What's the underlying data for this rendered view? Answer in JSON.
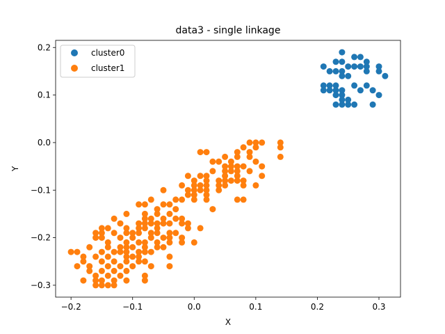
{
  "chart_data": {
    "type": "scatter",
    "title": "data3 - single linkage",
    "xlabel": "X",
    "ylabel": "Y",
    "xlim": [
      -0.225,
      0.335
    ],
    "ylim": [
      -0.325,
      0.215
    ],
    "xticks": [
      -0.2,
      -0.1,
      0.0,
      0.1,
      0.2,
      0.3
    ],
    "yticks": [
      -0.3,
      -0.2,
      -0.1,
      0.0,
      0.1,
      0.2
    ],
    "xtick_labels": [
      "−0.2",
      "−0.1",
      "0.0",
      "0.1",
      "0.2",
      "0.3"
    ],
    "ytick_labels": [
      "−0.3",
      "−0.2",
      "−0.1",
      "0.0",
      "0.1",
      "0.2"
    ],
    "grid": false,
    "legend": "top-left",
    "series": [
      {
        "name": "cluster0",
        "color": "#1f77b4",
        "points": [
          [
            0.24,
            0.19
          ],
          [
            0.26,
            0.18
          ],
          [
            0.27,
            0.18
          ],
          [
            0.28,
            0.17
          ],
          [
            0.21,
            0.16
          ],
          [
            0.23,
            0.17
          ],
          [
            0.24,
            0.17
          ],
          [
            0.25,
            0.16
          ],
          [
            0.26,
            0.16
          ],
          [
            0.27,
            0.16
          ],
          [
            0.28,
            0.16
          ],
          [
            0.3,
            0.16
          ],
          [
            0.22,
            0.15
          ],
          [
            0.23,
            0.15
          ],
          [
            0.24,
            0.15
          ],
          [
            0.28,
            0.15
          ],
          [
            0.3,
            0.15
          ],
          [
            0.24,
            0.14
          ],
          [
            0.25,
            0.14
          ],
          [
            0.31,
            0.14
          ],
          [
            0.21,
            0.12
          ],
          [
            0.22,
            0.12
          ],
          [
            0.23,
            0.12
          ],
          [
            0.26,
            0.12
          ],
          [
            0.28,
            0.12
          ],
          [
            0.21,
            0.11
          ],
          [
            0.22,
            0.11
          ],
          [
            0.23,
            0.11
          ],
          [
            0.24,
            0.11
          ],
          [
            0.27,
            0.11
          ],
          [
            0.29,
            0.11
          ],
          [
            0.23,
            0.1
          ],
          [
            0.24,
            0.1
          ],
          [
            0.3,
            0.1
          ],
          [
            0.24,
            0.09
          ],
          [
            0.25,
            0.09
          ],
          [
            0.23,
            0.08
          ],
          [
            0.24,
            0.08
          ],
          [
            0.25,
            0.08
          ],
          [
            0.26,
            0.08
          ],
          [
            0.29,
            0.08
          ]
        ]
      },
      {
        "name": "cluster1",
        "color": "#ff7f0e",
        "points": [
          [
            0.14,
            0.0
          ],
          [
            0.14,
            -0.01
          ],
          [
            0.14,
            -0.03
          ],
          [
            0.11,
            0.0
          ],
          [
            0.1,
            0.0
          ],
          [
            0.09,
            0.0
          ],
          [
            0.1,
            -0.01
          ],
          [
            0.08,
            -0.01
          ],
          [
            0.09,
            -0.02
          ],
          [
            0.07,
            -0.02
          ],
          [
            0.01,
            -0.02
          ],
          [
            0.02,
            -0.02
          ],
          [
            0.07,
            -0.03
          ],
          [
            0.05,
            -0.03
          ],
          [
            0.09,
            -0.03
          ],
          [
            0.03,
            -0.04
          ],
          [
            0.04,
            -0.04
          ],
          [
            0.06,
            -0.04
          ],
          [
            0.1,
            -0.04
          ],
          [
            0.11,
            -0.05
          ],
          [
            0.05,
            -0.05
          ],
          [
            0.06,
            -0.05
          ],
          [
            0.07,
            -0.05
          ],
          [
            0.08,
            -0.05
          ],
          [
            0.03,
            -0.06
          ],
          [
            0.05,
            -0.06
          ],
          [
            0.06,
            -0.06
          ],
          [
            0.07,
            -0.06
          ],
          [
            0.09,
            -0.06
          ],
          [
            -0.01,
            -0.07
          ],
          [
            0.01,
            -0.07
          ],
          [
            0.02,
            -0.07
          ],
          [
            0.05,
            -0.07
          ],
          [
            0.07,
            -0.07
          ],
          [
            0.11,
            -0.07
          ],
          [
            0.0,
            -0.08
          ],
          [
            0.02,
            -0.08
          ],
          [
            0.04,
            -0.08
          ],
          [
            0.05,
            -0.08
          ],
          [
            0.06,
            -0.08
          ],
          [
            0.07,
            -0.08
          ],
          [
            0.08,
            -0.08
          ],
          [
            -0.02,
            -0.09
          ],
          [
            0.0,
            -0.09
          ],
          [
            0.01,
            -0.09
          ],
          [
            0.02,
            -0.09
          ],
          [
            0.04,
            -0.09
          ],
          [
            0.05,
            -0.09
          ],
          [
            0.08,
            -0.09
          ],
          [
            0.1,
            -0.09
          ],
          [
            -0.01,
            -0.1
          ],
          [
            0.0,
            -0.1
          ],
          [
            0.01,
            -0.1
          ],
          [
            0.02,
            -0.1
          ],
          [
            -0.05,
            -0.1
          ],
          [
            0.04,
            -0.1
          ],
          [
            -0.01,
            -0.11
          ],
          [
            0.0,
            -0.11
          ],
          [
            0.02,
            -0.11
          ],
          [
            -0.02,
            -0.12
          ],
          [
            -0.03,
            -0.12
          ],
          [
            0.0,
            -0.12
          ],
          [
            0.02,
            -0.12
          ],
          [
            0.07,
            -0.12
          ],
          [
            0.08,
            -0.12
          ],
          [
            -0.07,
            -0.12
          ],
          [
            -0.05,
            -0.13
          ],
          [
            -0.04,
            -0.13
          ],
          [
            -0.08,
            -0.13
          ],
          [
            -0.09,
            -0.13
          ],
          [
            -0.06,
            -0.14
          ],
          [
            -0.03,
            -0.14
          ],
          [
            0.03,
            -0.14
          ],
          [
            -0.06,
            -0.15
          ],
          [
            -0.08,
            -0.15
          ],
          [
            -0.11,
            -0.15
          ],
          [
            -0.04,
            -0.15
          ],
          [
            -0.13,
            -0.16
          ],
          [
            -0.08,
            -0.16
          ],
          [
            -0.07,
            -0.16
          ],
          [
            -0.05,
            -0.16
          ],
          [
            -0.03,
            -0.16
          ],
          [
            -0.02,
            -0.16
          ],
          [
            -0.12,
            -0.17
          ],
          [
            -0.09,
            -0.17
          ],
          [
            -0.08,
            -0.17
          ],
          [
            -0.07,
            -0.17
          ],
          [
            -0.06,
            -0.17
          ],
          [
            -0.05,
            -0.17
          ],
          [
            -0.04,
            -0.17
          ],
          [
            -0.02,
            -0.17
          ],
          [
            -0.01,
            -0.17
          ],
          [
            -0.15,
            -0.18
          ],
          [
            -0.14,
            -0.18
          ],
          [
            -0.11,
            -0.18
          ],
          [
            -0.09,
            -0.18
          ],
          [
            -0.08,
            -0.18
          ],
          [
            -0.06,
            -0.18
          ],
          [
            -0.01,
            -0.18
          ],
          [
            0.01,
            -0.18
          ],
          [
            -0.16,
            -0.19
          ],
          [
            -0.15,
            -0.19
          ],
          [
            -0.13,
            -0.19
          ],
          [
            -0.11,
            -0.19
          ],
          [
            -0.1,
            -0.19
          ],
          [
            -0.09,
            -0.19
          ],
          [
            -0.07,
            -0.19
          ],
          [
            -0.06,
            -0.19
          ],
          [
            -0.04,
            -0.19
          ],
          [
            -0.03,
            -0.19
          ],
          [
            -0.16,
            -0.2
          ],
          [
            -0.15,
            -0.2
          ],
          [
            -0.12,
            -0.2
          ],
          [
            -0.1,
            -0.2
          ],
          [
            -0.07,
            -0.2
          ],
          [
            -0.05,
            -0.2
          ],
          [
            -0.04,
            -0.2
          ],
          [
            -0.02,
            -0.2
          ],
          [
            -0.14,
            -0.21
          ],
          [
            -0.11,
            -0.21
          ],
          [
            -0.09,
            -0.21
          ],
          [
            -0.08,
            -0.21
          ],
          [
            -0.06,
            -0.21
          ],
          [
            -0.04,
            -0.21
          ],
          [
            -0.02,
            -0.21
          ],
          [
            0.0,
            -0.21
          ],
          [
            -0.17,
            -0.22
          ],
          [
            -0.14,
            -0.22
          ],
          [
            -0.12,
            -0.22
          ],
          [
            -0.11,
            -0.22
          ],
          [
            -0.1,
            -0.22
          ],
          [
            -0.08,
            -0.22
          ],
          [
            -0.06,
            -0.22
          ],
          [
            -0.05,
            -0.22
          ],
          [
            -0.2,
            -0.23
          ],
          [
            -0.19,
            -0.23
          ],
          [
            -0.15,
            -0.23
          ],
          [
            -0.13,
            -0.23
          ],
          [
            -0.12,
            -0.23
          ],
          [
            -0.11,
            -0.23
          ],
          [
            -0.09,
            -0.23
          ],
          [
            -0.08,
            -0.23
          ],
          [
            -0.07,
            -0.23
          ],
          [
            -0.18,
            -0.24
          ],
          [
            -0.16,
            -0.24
          ],
          [
            -0.14,
            -0.24
          ],
          [
            -0.11,
            -0.24
          ],
          [
            -0.1,
            -0.24
          ],
          [
            -0.09,
            -0.24
          ],
          [
            -0.04,
            -0.24
          ],
          [
            -0.18,
            -0.25
          ],
          [
            -0.15,
            -0.25
          ],
          [
            -0.13,
            -0.25
          ],
          [
            -0.11,
            -0.25
          ],
          [
            -0.09,
            -0.25
          ],
          [
            -0.08,
            -0.25
          ],
          [
            -0.19,
            -0.26
          ],
          [
            -0.17,
            -0.26
          ],
          [
            -0.14,
            -0.26
          ],
          [
            -0.12,
            -0.26
          ],
          [
            -0.1,
            -0.26
          ],
          [
            -0.07,
            -0.26
          ],
          [
            -0.04,
            -0.26
          ],
          [
            -0.17,
            -0.27
          ],
          [
            -0.15,
            -0.27
          ],
          [
            -0.13,
            -0.27
          ],
          [
            -0.11,
            -0.27
          ],
          [
            -0.16,
            -0.28
          ],
          [
            -0.14,
            -0.28
          ],
          [
            -0.12,
            -0.28
          ],
          [
            -0.08,
            -0.28
          ],
          [
            -0.18,
            -0.29
          ],
          [
            -0.16,
            -0.29
          ],
          [
            -0.15,
            -0.29
          ],
          [
            -0.13,
            -0.29
          ],
          [
            -0.11,
            -0.29
          ],
          [
            -0.08,
            -0.29
          ],
          [
            -0.16,
            -0.3
          ],
          [
            -0.15,
            -0.3
          ],
          [
            -0.14,
            -0.3
          ],
          [
            -0.13,
            -0.3
          ]
        ]
      }
    ]
  }
}
